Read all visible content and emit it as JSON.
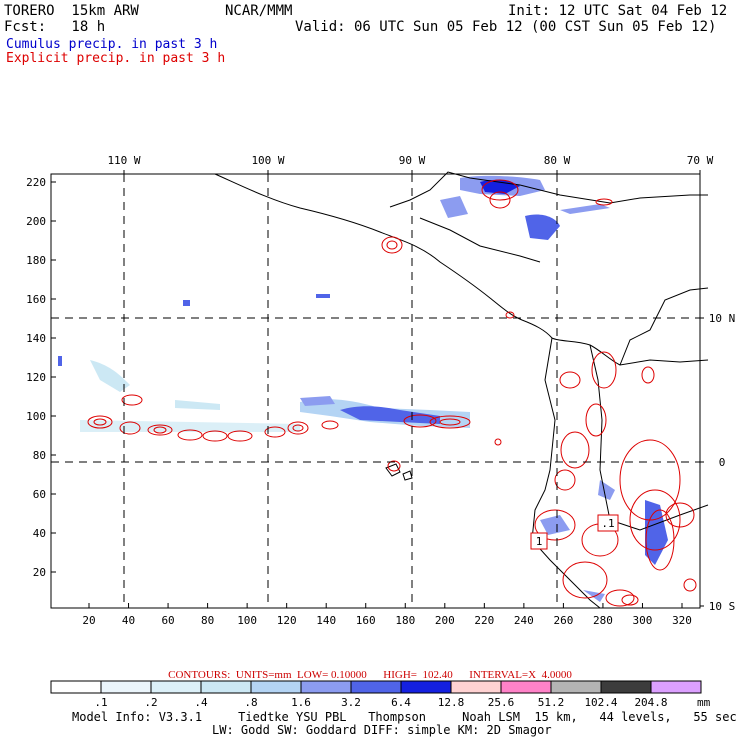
{
  "header": {
    "model": "TORERO  15km ARW",
    "org": "NCAR/MMM",
    "init": "Init: 12 UTC Sat 04 Feb 12",
    "fcst": "Fcst:   18 h",
    "valid": "Valid: 06 UTC Sun 05 Feb 12 (00 CST Sun 05 Feb 12)"
  },
  "legend_lines": {
    "cumulus": "Cumulus precip. in past 3 h",
    "explicit": "Explicit precip. in past 3 h",
    "cumulus_color": "#0000cc",
    "explicit_color": "#dd0000"
  },
  "map": {
    "top_lon_labels": [
      "110 W",
      "100 W",
      "90 W",
      "80 W",
      "70 W"
    ],
    "right_lat_labels": [
      "10 N",
      "0",
      "10 S"
    ],
    "y_ticks": [
      "220",
      "200",
      "180",
      "160",
      "140",
      "120",
      "100",
      "80",
      "60",
      "40",
      "20"
    ],
    "x_ticks": [
      "20",
      "40",
      "60",
      "80",
      "100",
      "120",
      "140",
      "160",
      "180",
      "200",
      "220",
      "240",
      "260",
      "280",
      "300",
      "320"
    ],
    "box_labels": [
      "1",
      ".1"
    ]
  },
  "contours": {
    "label": "CONTOURS:",
    "units": "UNITS=mm",
    "low": "LOW= 0.10000",
    "high": "HIGH=  102.40",
    "interval": "INTERVAL=X  4.0000"
  },
  "colorbar": {
    "labels": [
      ".1",
      ".2",
      ".4",
      ".8",
      "1.6",
      "3.2",
      "6.4",
      "12.8",
      "25.6",
      "51.2",
      "102.4",
      "204.8"
    ],
    "unit": "mm",
    "colors": [
      "#ffffff",
      "#ebf5fb",
      "#dcf0f8",
      "#cce8f4",
      "#b4d4f4",
      "#8c9cf0",
      "#5064e8",
      "#1420e0",
      "#ffd2d2",
      "#ff82c8",
      "#b4b4b4",
      "#3c3c3c",
      "#dca0ff"
    ]
  },
  "footer": {
    "line1": "Model Info: V3.3.1     Tiedtke YSU PBL   Thompson     Noah LSM  15 km,   44 levels,   55 sec",
    "line2": "LW: Godd SW: Goddard DIFF: simple KM: 2D Smagor"
  }
}
